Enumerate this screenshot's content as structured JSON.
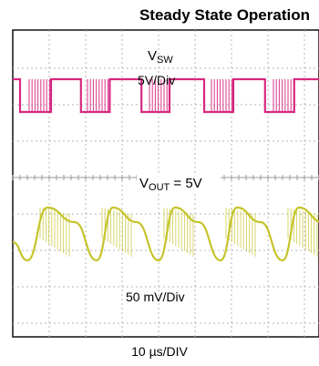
{
  "chart_data": {
    "type": "line",
    "title": "Steady State Operation",
    "grid": true,
    "x_scale_label": "10 µs/DIV",
    "annotations": {
      "vsw_name": "V",
      "vsw_sub": "SW",
      "vsw_scale": "5V/Div",
      "vout_name": "V",
      "vout_sub": "OUT",
      "vout_value": " = 5V",
      "vout_scale": "50 mV/Div"
    },
    "series": [
      {
        "name": "VSW",
        "color": "#d6287f",
        "x_div": [
          0,
          0.2,
          0.2,
          1.05,
          1.05,
          1.87,
          1.87,
          2.66,
          2.66,
          3.53,
          3.53,
          4.3,
          4.3,
          5.25,
          5.25,
          6.05,
          6.05,
          6.92,
          6.92,
          7.72,
          7.72,
          8.5,
          8.5,
          8.7
        ],
        "y_div": [
          1.5,
          1.5,
          0.6,
          0.6,
          1.5,
          1.5,
          0.6,
          0.6,
          1.5,
          1.5,
          0.6,
          0.6,
          1.5,
          1.5,
          0.6,
          0.6,
          1.5,
          1.5,
          0.6,
          0.6,
          1.5,
          1.5,
          0.6,
          0.6
        ],
        "burst_windows_div": [
          [
            0.45,
            1.05
          ],
          [
            2.05,
            2.66
          ],
          [
            3.75,
            4.3
          ],
          [
            5.45,
            6.05
          ],
          [
            7.15,
            7.72
          ]
        ]
      },
      {
        "name": "VOUT",
        "color": "#c5c42a",
        "x_div": [
          0,
          0.4,
          0.95,
          1.7,
          2.3,
          2.75,
          3.4,
          4.0,
          4.45,
          5.1,
          5.7,
          6.15,
          6.8,
          7.4,
          7.85,
          8.5,
          8.7
        ],
        "y_div": [
          -0.4,
          -0.9,
          0.55,
          0.15,
          -0.9,
          0.55,
          0.15,
          -0.9,
          0.55,
          0.15,
          -0.9,
          0.55,
          0.15,
          -0.9,
          0.55,
          0.15,
          0.0
        ],
        "ripple_windows_div": [
          [
            0.75,
            1.7
          ],
          [
            2.45,
            3.4
          ],
          [
            4.15,
            5.1
          ],
          [
            5.85,
            6.8
          ],
          [
            7.55,
            8.5
          ]
        ]
      }
    ]
  }
}
